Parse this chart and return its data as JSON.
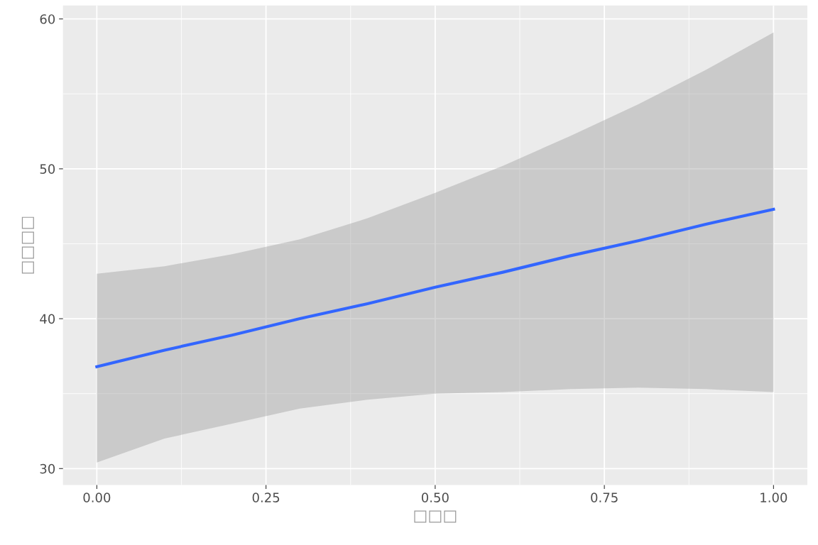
{
  "chart_data": {
    "type": "line",
    "xlabel": "□□□",
    "ylabel": "□□□□",
    "x": [
      0,
      0.1,
      0.2,
      0.3,
      0.4,
      0.5,
      0.6,
      0.7,
      0.8,
      0.9,
      1.0
    ],
    "series": [
      {
        "color": "#3366ff",
        "values": [
          36.8,
          37.9,
          38.9,
          40.0,
          41.0,
          42.1,
          43.1,
          44.2,
          45.2,
          46.3,
          47.3
        ],
        "lower": [
          30.4,
          32.0,
          33.0,
          34.0,
          34.6,
          35.0,
          35.1,
          35.3,
          35.4,
          35.3,
          35.1
        ],
        "upper": [
          43.0,
          43.5,
          44.3,
          45.3,
          46.7,
          48.4,
          50.2,
          52.2,
          54.3,
          56.6,
          59.1
        ]
      }
    ],
    "xlim": [
      -0.05,
      1.05
    ],
    "ylim": [
      28.9,
      60.9
    ],
    "xticks": [
      {
        "value": 0,
        "label": "0.00"
      },
      {
        "value": 0.25,
        "label": "0.25"
      },
      {
        "value": 0.5,
        "label": "0.50"
      },
      {
        "value": 0.75,
        "label": "0.75"
      },
      {
        "value": 1,
        "label": "1.00"
      }
    ],
    "yticks": [
      30,
      40,
      50,
      60
    ],
    "grid": true,
    "legend": false,
    "marker": "none",
    "line_style": "solid"
  }
}
